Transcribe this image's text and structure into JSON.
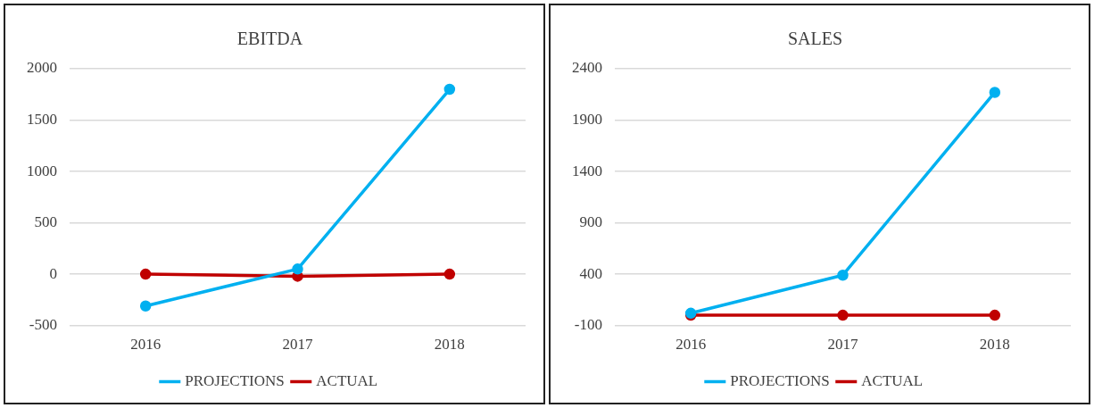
{
  "chart_data": [
    {
      "type": "line",
      "title": "EBITDA",
      "categories": [
        "2016",
        "2017",
        "2018"
      ],
      "series": [
        {
          "name": "PROJECTIONS",
          "color": "#00b0f0",
          "values": [
            -310,
            50,
            1800
          ]
        },
        {
          "name": "ACTUAL",
          "color": "#c00000",
          "values": [
            0,
            -20,
            0
          ]
        }
      ],
      "ylim": [
        -500,
        2000
      ],
      "yticks": [
        -500,
        0,
        500,
        1000,
        1500,
        2000
      ],
      "grid": "y",
      "legend": "bottom",
      "marker": "circle",
      "line_style": "solid"
    },
    {
      "type": "line",
      "title": "SALES",
      "categories": [
        "2016",
        "2017",
        "2018"
      ],
      "series": [
        {
          "name": "PROJECTIONS",
          "color": "#00b0f0",
          "values": [
            20,
            390,
            2170
          ]
        },
        {
          "name": "ACTUAL",
          "color": "#c00000",
          "values": [
            0,
            0,
            0
          ]
        }
      ],
      "ylim": [
        -100,
        2400
      ],
      "yticks": [
        -100,
        400,
        900,
        1400,
        1900,
        2400
      ],
      "grid": "y",
      "legend": "bottom",
      "marker": "circle",
      "line_style": "solid"
    }
  ]
}
